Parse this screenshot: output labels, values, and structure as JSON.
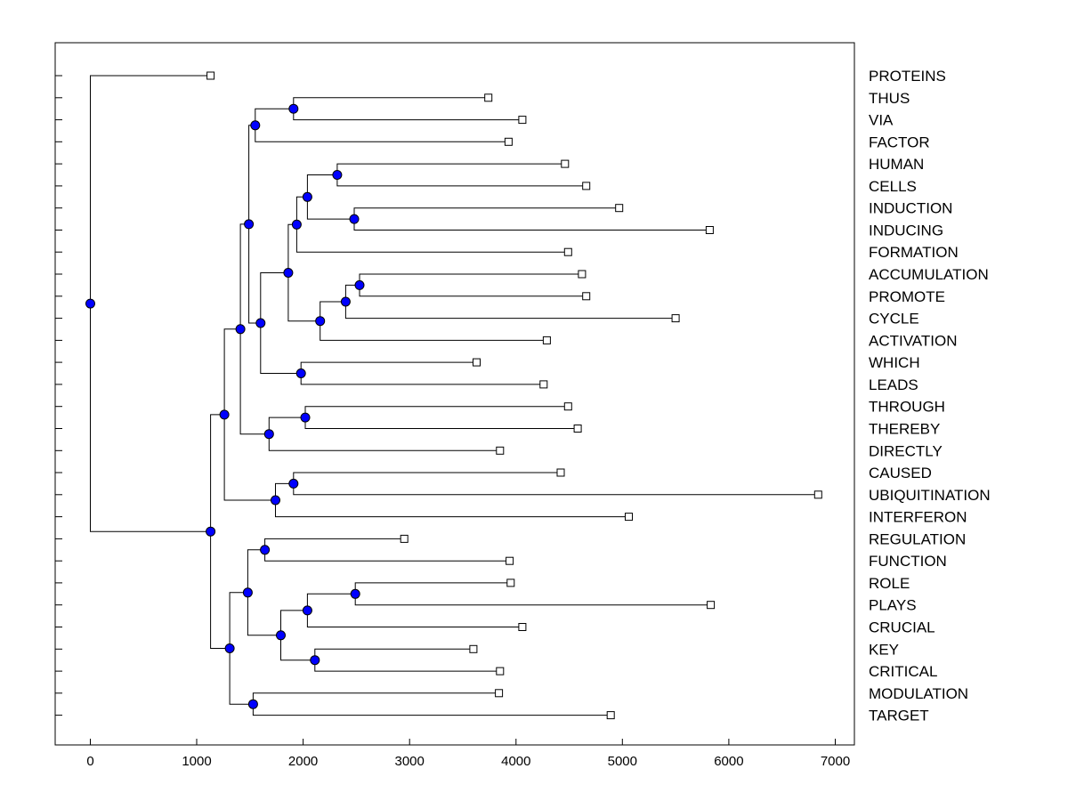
{
  "chart_data": {
    "type": "dendrogram",
    "xlim": [
      -330,
      7180
    ],
    "x_ticks": [
      0,
      1000,
      2000,
      3000,
      4000,
      5000,
      6000,
      7000
    ],
    "x_tick_labels": [
      "0",
      "1000",
      "2000",
      "3000",
      "4000",
      "5000",
      "6000",
      "7000"
    ],
    "leaves": [
      {
        "label": "PROTEINS",
        "value": 1130
      },
      {
        "label": "THUS",
        "value": 3740
      },
      {
        "label": "VIA",
        "value": 4060
      },
      {
        "label": "FACTOR",
        "value": 3930
      },
      {
        "label": "HUMAN",
        "value": 4460
      },
      {
        "label": "CELLS",
        "value": 4660
      },
      {
        "label": "INDUCTION",
        "value": 4970
      },
      {
        "label": "INDUCING",
        "value": 5820
      },
      {
        "label": "FORMATION",
        "value": 4490
      },
      {
        "label": "ACCUMULATION",
        "value": 4620
      },
      {
        "label": "PROMOTE",
        "value": 4660
      },
      {
        "label": "CYCLE",
        "value": 5500
      },
      {
        "label": "ACTIVATION",
        "value": 4290
      },
      {
        "label": "WHICH",
        "value": 3630
      },
      {
        "label": "LEADS",
        "value": 4260
      },
      {
        "label": "THROUGH",
        "value": 4490
      },
      {
        "label": "THEREBY",
        "value": 4580
      },
      {
        "label": "DIRECTLY",
        "value": 3850
      },
      {
        "label": "CAUSED",
        "value": 4420
      },
      {
        "label": "UBIQUITINATION",
        "value": 6840
      },
      {
        "label": "INTERFERON",
        "value": 5060
      },
      {
        "label": "REGULATION",
        "value": 2950
      },
      {
        "label": "FUNCTION",
        "value": 3940
      },
      {
        "label": "ROLE",
        "value": 3950
      },
      {
        "label": "PLAYS",
        "value": 5830
      },
      {
        "label": "CRUCIAL",
        "value": 4060
      },
      {
        "label": "KEY",
        "value": 3600
      },
      {
        "label": "CRITICAL",
        "value": 3850
      },
      {
        "label": "MODULATION",
        "value": 3840
      },
      {
        "label": "TARGET",
        "value": 4890
      }
    ],
    "nodes": [
      {
        "id": "root",
        "value": 0,
        "children": [
          "L0",
          "A"
        ]
      },
      {
        "id": "A",
        "value": 1130,
        "children": [
          "B",
          "N"
        ]
      },
      {
        "id": "B",
        "value": 1260,
        "children": [
          "C",
          "L"
        ]
      },
      {
        "id": "C",
        "value": 1410,
        "children": [
          "D",
          "K"
        ]
      },
      {
        "id": "D",
        "value": 1490,
        "children": [
          "E",
          "F"
        ]
      },
      {
        "id": "E",
        "value": 1550,
        "children": [
          "E1",
          "L3"
        ]
      },
      {
        "id": "E1",
        "value": 1910,
        "children": [
          "L1",
          "L2"
        ]
      },
      {
        "id": "F",
        "value": 1600,
        "children": [
          "G",
          "J"
        ]
      },
      {
        "id": "G",
        "value": 1860,
        "children": [
          "H",
          "I"
        ]
      },
      {
        "id": "H",
        "value": 1940,
        "children": [
          "H1",
          "L8"
        ]
      },
      {
        "id": "H1",
        "value": 2040,
        "children": [
          "H2",
          "H3"
        ]
      },
      {
        "id": "H2",
        "value": 2320,
        "children": [
          "L4",
          "L5"
        ]
      },
      {
        "id": "H3",
        "value": 2480,
        "children": [
          "L6",
          "L7"
        ]
      },
      {
        "id": "I",
        "value": 2160,
        "children": [
          "I1",
          "L12"
        ]
      },
      {
        "id": "I1",
        "value": 2400,
        "children": [
          "I2",
          "L11"
        ]
      },
      {
        "id": "I2",
        "value": 2530,
        "children": [
          "L9",
          "L10"
        ]
      },
      {
        "id": "J",
        "value": 1980,
        "children": [
          "L13",
          "L14"
        ]
      },
      {
        "id": "K",
        "value": 1680,
        "children": [
          "K1",
          "L17"
        ]
      },
      {
        "id": "K1",
        "value": 2020,
        "children": [
          "L15",
          "L16"
        ]
      },
      {
        "id": "L",
        "value": 1740,
        "children": [
          "L_1",
          "L20"
        ]
      },
      {
        "id": "L_1",
        "value": 1910,
        "children": [
          "L18",
          "L19"
        ]
      },
      {
        "id": "N",
        "value": 1310,
        "children": [
          "O",
          "Q"
        ]
      },
      {
        "id": "O",
        "value": 1480,
        "children": [
          "O1",
          "P"
        ]
      },
      {
        "id": "O1",
        "value": 1640,
        "children": [
          "L21",
          "L22"
        ]
      },
      {
        "id": "P",
        "value": 1790,
        "children": [
          "P1",
          "P3"
        ]
      },
      {
        "id": "P1",
        "value": 2040,
        "children": [
          "P2",
          "L25"
        ]
      },
      {
        "id": "P2",
        "value": 2490,
        "children": [
          "L23",
          "L24"
        ]
      },
      {
        "id": "P3",
        "value": 2110,
        "children": [
          "L26",
          "L27"
        ]
      },
      {
        "id": "Q",
        "value": 1530,
        "children": [
          "L28",
          "L29"
        ]
      }
    ]
  }
}
